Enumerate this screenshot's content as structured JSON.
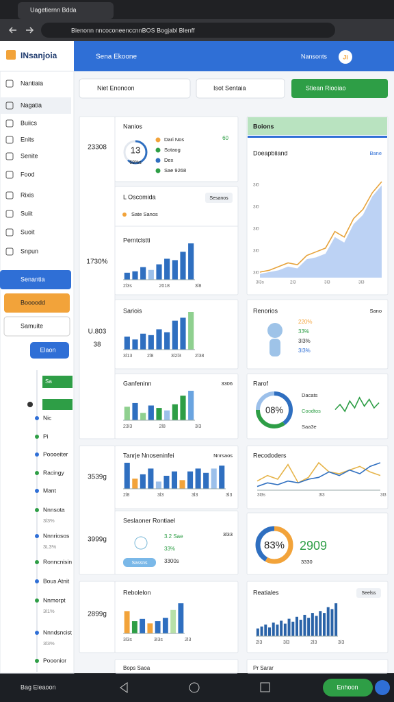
{
  "browser": {
    "tab_title": "Uagetiernn Bdda",
    "url": "Bienonn nncoconeenccnnBOS Bogjabl Blenff"
  },
  "app": {
    "logo": "INsanjoia",
    "header_title": "Sena Ekoone",
    "header_user": "Nansonts",
    "user_badge": "Ji"
  },
  "sidebar": {
    "items": [
      "Nantiaia",
      "Nagatia",
      "Buiics",
      "Enits",
      "Senite",
      "Food",
      "Rixis",
      "Suiit",
      "Suoit",
      "Snpun"
    ],
    "primary_button": "Senantia",
    "secondary_button": "Boooodd",
    "select": "Samuite",
    "small_button": "Elaon"
  },
  "timeline": {
    "bar_label": "Sa",
    "items": [
      {
        "label": "Nic"
      },
      {
        "label": "Pi"
      },
      {
        "label": "Poooeiter"
      },
      {
        "label": "Racingy"
      },
      {
        "label": "Mant"
      },
      {
        "label": "Nnnsota",
        "note": "3l3%"
      },
      {
        "label": "Nnnriosos",
        "note": "3L3%"
      },
      {
        "label": "Ronncnisin"
      },
      {
        "label": "Bous Atnit"
      },
      {
        "label": "Nnmorpt",
        "note": "3l1%"
      },
      {
        "label": "Nnndsncist",
        "note": "3l3%"
      },
      {
        "label": "Pooonior"
      }
    ]
  },
  "toolbar": {
    "search": "Niet Enonoon",
    "filter": "Isot Sentaia",
    "action": "Stiean Riooiao"
  },
  "stats": [
    "23308",
    "1730%",
    "U.803",
    "38",
    "3539g",
    "3999g",
    "2899g"
  ],
  "cards": {
    "nanios": {
      "title": "Nanios",
      "donut_label": "13",
      "donut_sub": "68%s",
      "donut": [
        62,
        38
      ],
      "donut_colors": [
        "#2f6fc0",
        "#e3e8ef"
      ],
      "legend": [
        "Dari Nos",
        "Sotaog",
        "Dex",
        "Sae 9268"
      ],
      "legend_colors": [
        "#f2a33a",
        "#2e9e46",
        "#2f6fc0",
        "#2e9e46"
      ],
      "badge": "60"
    },
    "oscomida": {
      "title": "L Oscomida",
      "button": "Sesanos",
      "legend": "Sate Sanos",
      "chart_title": "Perntclstti",
      "values": [
        10,
        12,
        18,
        14,
        22,
        30,
        28,
        40,
        52
      ],
      "colors": [
        "#2f6fc0",
        "#2f6fc0",
        "#2f6fc0",
        "#9cc0ea",
        "#2f6fc0",
        "#2f6fc0",
        "#2f6fc0",
        "#2f6fc0",
        "#2f6fc0"
      ],
      "ticks": [
        "2l3s",
        "2018",
        "3l8"
      ]
    },
    "sariois": {
      "title": "Sariois",
      "values": [
        18,
        14,
        22,
        20,
        28,
        24,
        40,
        44,
        52
      ],
      "colors": [
        "#2f6fc0",
        "#2f6fc0",
        "#2f6fc0",
        "#2f6fc0",
        "#2f6fc0",
        "#2f6fc0",
        "#2f6fc0",
        "#2f6fc0",
        "#8fd08f"
      ],
      "ticks": [
        "3l13",
        "2l8",
        "3l2l3",
        "2l38"
      ]
    },
    "ganfeninn": {
      "title": "Ganfeninn",
      "note": "3306",
      "values": [
        22,
        28,
        12,
        24,
        20,
        16,
        26,
        40,
        48
      ],
      "colors": [
        "#8fd08f",
        "#2f6fc0",
        "#8fd08f",
        "#2f6fc0",
        "#2e9e46",
        "#9cc0ea",
        "#2e9e46",
        "#2e9e46",
        "#6aa4e0"
      ],
      "ticks": [
        "23l3",
        "2l8",
        "3l3"
      ]
    },
    "tanrje": {
      "title": "Tanrje Nnoseninfei",
      "tag": "Nnrsaos",
      "values": [
        36,
        14,
        20,
        28,
        10,
        18,
        24,
        12,
        24,
        28,
        22,
        28,
        32
      ],
      "colors": [
        "#2f6fc0",
        "#f2a33a",
        "#2f6fc0",
        "#2f6fc0",
        "#9cc0ea",
        "#2f6fc0",
        "#2f6fc0",
        "#f2a33a",
        "#2f6fc0",
        "#2f6fc0",
        "#2f6fc0",
        "#9cc0ea",
        "#2f6fc0"
      ],
      "ticks": [
        "2l8",
        "3l3",
        "3l3",
        "3l3"
      ]
    },
    "seslaoner": {
      "title": "Seslaoner Rontiael",
      "lines": [
        "3.2 Sae",
        "33%",
        "3300s"
      ],
      "chip": "Sassns",
      "note": "3l33"
    },
    "rebolelon": {
      "title": "Rebolelon",
      "values": [
        40,
        22,
        26,
        18,
        22,
        28,
        42,
        54
      ],
      "colors": [
        "#f2a33a",
        "#2e9e46",
        "#2f6fc0",
        "#f2a33a",
        "#2f6fc0",
        "#2f6fc0",
        "#b8e0a8",
        "#2f6fc0"
      ],
      "ticks": [
        "3l3s",
        "3l3s",
        "2l3"
      ]
    },
    "boions": {
      "title": "Boions",
      "subtitle": "Doeapbiiand",
      "link": "Bane",
      "area": [
        4,
        6,
        8,
        12,
        10,
        20,
        22,
        26,
        44,
        38,
        58,
        68,
        88,
        100
      ],
      "line": [
        6,
        8,
        12,
        16,
        14,
        24,
        28,
        32,
        50,
        44,
        64,
        74,
        92,
        104
      ],
      "yticks": [
        "3l0",
        "3l0",
        "3l0",
        "3l0",
        "3l0"
      ],
      "xticks": [
        "3l3s",
        "2l3",
        "3l3",
        "3l3"
      ]
    },
    "renorios": {
      "title": "Renorios",
      "link": "Sano",
      "stats": [
        "220%",
        "33%",
        "3l3%",
        "3l3%"
      ]
    },
    "rarof": {
      "title": "Rarof",
      "donut_label": "08%",
      "donut": [
        40,
        35,
        25
      ],
      "donut_colors": [
        "#2f6fc0",
        "#2e9e46",
        "#9cc0ea"
      ],
      "lines": [
        "Dacats",
        "Coodtos",
        "Saa3e"
      ],
      "spark": [
        10,
        16,
        8,
        20,
        12,
        24,
        14,
        22,
        12,
        18
      ]
    },
    "recododers": {
      "title": "Recododers",
      "series": [
        {
          "color": "#e6b44a",
          "values": [
            10,
            16,
            12,
            28,
            8,
            14,
            30,
            20,
            18,
            22,
            26,
            20,
            16
          ]
        },
        {
          "color": "#2f6fc0",
          "values": [
            4,
            8,
            6,
            10,
            8,
            12,
            14,
            20,
            16,
            22,
            18,
            26,
            30
          ]
        }
      ],
      "ticks": [
        "3l3s",
        "3l3",
        "3l3"
      ]
    },
    "donut83": {
      "label": "83%",
      "value": "2909",
      "sub": "3330",
      "donut": [
        58,
        42
      ],
      "donut_colors": [
        "#f2a33a",
        "#2f6fc0"
      ]
    },
    "reatiales": {
      "title": "Reatiales",
      "button": "Seelss",
      "values": [
        8,
        10,
        12,
        9,
        14,
        12,
        16,
        13,
        18,
        15,
        20,
        17,
        22,
        19,
        24,
        21,
        26,
        24,
        30,
        28,
        34
      ],
      "color": "#2a63a8",
      "ticks": [
        "2l3",
        "3l3",
        "2l3",
        "3l3"
      ]
    },
    "bops": {
      "title": "Bops Saoa"
    },
    "prsarar": {
      "title": "Pr Sarar"
    }
  },
  "bottom": {
    "user": "Bag Eleaoon",
    "button": "Enhoon"
  }
}
